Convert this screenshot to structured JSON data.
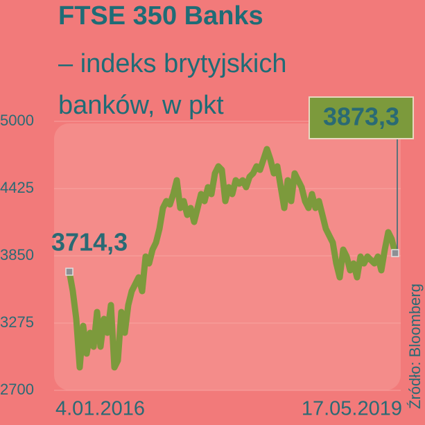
{
  "chart_data": {
    "type": "line",
    "title": "FTSE 350 Banks",
    "subtitle": "– indeks brytyjskich banków, w pkt",
    "source": "Źródło: Bloomberg",
    "categories": [
      "4.01.2016",
      null,
      null,
      null,
      null,
      null,
      null,
      null,
      null,
      null,
      null,
      null,
      null,
      null,
      null,
      null,
      null,
      null,
      null,
      null,
      null,
      null,
      null,
      null,
      null,
      null,
      null,
      null,
      null,
      null,
      null,
      null,
      null,
      null,
      null,
      null,
      null,
      null,
      null,
      null,
      null,
      null,
      null,
      null,
      null,
      null,
      null,
      null,
      null,
      null,
      null,
      null,
      null,
      null,
      null,
      null,
      null,
      null,
      null,
      null,
      null,
      null,
      null,
      null,
      null,
      null,
      null,
      null,
      null,
      null,
      null,
      null,
      null,
      null,
      null,
      null,
      null,
      null,
      null,
      null,
      null,
      null,
      null,
      null,
      null,
      null,
      null,
      null,
      null,
      null,
      null,
      null,
      null,
      null,
      "17.05.2019"
    ],
    "values": [
      3714.3,
      3548,
      3311,
      2896,
      3251,
      3014,
      3192,
      3073,
      3370,
      3073,
      3311,
      3192,
      3429,
      2896,
      2955,
      3370,
      3192,
      3429,
      3548,
      3607,
      3666,
      3548,
      3844,
      3785,
      3903,
      3963,
      4081,
      4259,
      4318,
      4289,
      4378,
      4496,
      4259,
      4318,
      4200,
      4259,
      4140,
      4259,
      4378,
      4318,
      4437,
      4378,
      4555,
      4615,
      4585,
      4318,
      4437,
      4378,
      4496,
      4467,
      4496,
      4437,
      4526,
      4555,
      4615,
      4585,
      4674,
      4763,
      4674,
      4555,
      4615,
      4437,
      4259,
      4496,
      4318,
      4555,
      4496,
      4437,
      4318,
      4259,
      4378,
      4259,
      4318,
      4200,
      4081,
      4022,
      3963,
      3785,
      3666,
      3903,
      3844,
      3726,
      3785,
      3666,
      3844,
      3785,
      3844,
      3814,
      3785,
      3844,
      3726,
      3903,
      4052,
      3992,
      3873.3
    ],
    "value_labels": [
      "3714,3",
      null,
      null,
      null,
      null,
      null,
      null,
      null,
      null,
      null,
      null,
      null,
      null,
      null,
      null,
      null,
      null,
      null,
      null,
      null,
      null,
      null,
      null,
      null,
      null,
      null,
      null,
      null,
      null,
      null,
      null,
      null,
      null,
      null,
      null,
      null,
      null,
      null,
      null,
      null,
      null,
      null,
      null,
      null,
      null,
      null,
      null,
      null,
      null,
      null,
      null,
      null,
      null,
      null,
      null,
      null,
      null,
      null,
      null,
      null,
      null,
      null,
      null,
      null,
      null,
      null,
      null,
      null,
      null,
      null,
      null,
      null,
      null,
      null,
      null,
      null,
      null,
      null,
      null,
      null,
      null,
      null,
      null,
      null,
      null,
      null,
      null,
      null,
      null,
      null,
      null,
      null,
      null,
      null,
      "3873,3"
    ],
    "color": "#7c9a3c",
    "ylim": [
      2700,
      5000
    ],
    "yticks": [
      2700,
      3275,
      3850,
      4425,
      5000
    ],
    "grid": true
  }
}
